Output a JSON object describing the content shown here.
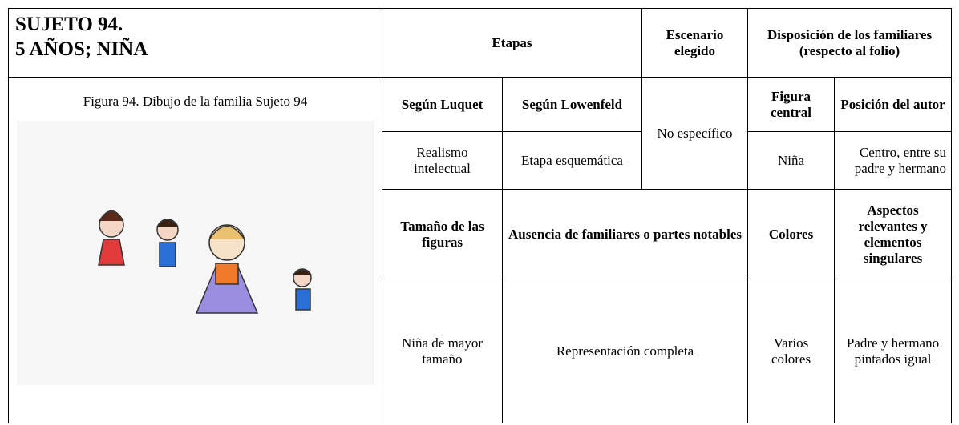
{
  "title": {
    "line1": "SUJETO 94.",
    "line2": "5 AÑOS; NIÑA"
  },
  "figure_caption": "Figura 94. Dibujo de la familia Sujeto 94",
  "table": {
    "header": [
      "Etapas",
      "Escenario elegido",
      "Disposición de los familiares (respecto al folio)"
    ],
    "subheader": [
      "Según Luquet",
      "Según Lowenfeld",
      "Figura central",
      "Posición del autor"
    ],
    "scenario": "No específico",
    "row1": [
      "Realismo intelectual",
      "Etapa esquemática",
      "Niña",
      "Centro, entre su padre y hermano"
    ],
    "row2_headers": [
      "Tamaño de las figuras",
      "Ausencia de familiares o partes notables",
      "Colores",
      "Aspectos relevantes y elementos singulares"
    ],
    "row2": [
      "Niña de mayor tamaño",
      "Representación completa",
      "Varios colores",
      "Padre y hermano pintados igual"
    ]
  }
}
